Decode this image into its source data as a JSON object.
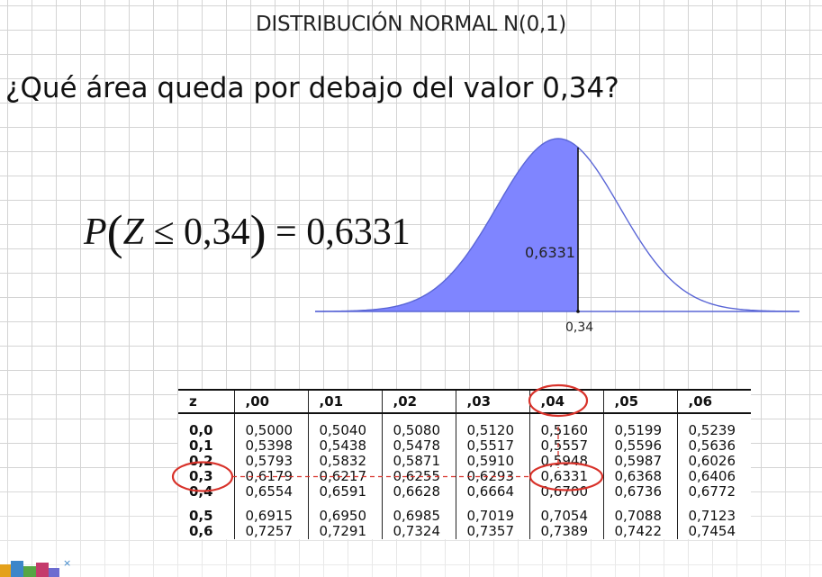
{
  "title": "DISTRIBUCIÓN NORMAL  N(0,1)",
  "question": "¿Qué área queda por debajo del valor 0,34?",
  "formula": {
    "p": "P",
    "open": "(",
    "var": "Z",
    "op": " ≤ 0,34",
    "close": ")",
    "result": " = 0,6331"
  },
  "curve": {
    "area_label": "0,6331",
    "axis_label": "0,34",
    "cutoff": 0.34,
    "fill_color": "#7f85ff",
    "line_color": "#5a66d6"
  },
  "table": {
    "headers": [
      "z",
      ",00",
      ",01",
      ",02",
      ",03",
      ",04",
      ",05",
      ",06"
    ],
    "rows": [
      [
        "0,0",
        "0,5000",
        "0,5040",
        "0,5080",
        "0,5120",
        "0,5160",
        "0,5199",
        "0,5239"
      ],
      [
        "0,1",
        "0,5398",
        "0,5438",
        "0,5478",
        "0,5517",
        "0,5557",
        "0,5596",
        "0,5636"
      ],
      [
        "0,2",
        "0,5793",
        "0,5832",
        "0,5871",
        "0,5910",
        "0,5948",
        "0,5987",
        "0,6026"
      ],
      [
        "0,3",
        "0,6179",
        "0,6217",
        "0,6255",
        "0,6293",
        "0,6331",
        "0,6368",
        "0,6406"
      ],
      [
        "0,4",
        "0,6554",
        "0,6591",
        "0,6628",
        "0,6664",
        "0,6700",
        "0,6736",
        "0,6772"
      ],
      [
        "0,5",
        "0,6915",
        "0,6950",
        "0,6985",
        "0,7019",
        "0,7054",
        "0,7088",
        "0,7123"
      ],
      [
        "0,6",
        "0,7257",
        "0,7291",
        "0,7324",
        "0,7357",
        "0,7389",
        "0,7422",
        "0,7454"
      ]
    ]
  },
  "highlight_color": "#d8322a"
}
